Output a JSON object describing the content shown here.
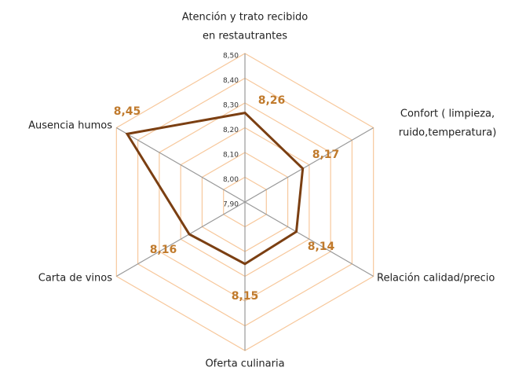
{
  "chart_data": {
    "type": "radar",
    "categories": [
      [
        "Atención y trato recibido",
        "en restautrantes"
      ],
      [
        "Confort ( limpieza,",
        "ruido,temperatura)"
      ],
      [
        "Relación calidad/precio"
      ],
      [
        "Oferta culinaria"
      ],
      [
        "Carta de vinos"
      ],
      [
        "Ausencia humos"
      ]
    ],
    "values": [
      8.26,
      8.17,
      8.14,
      8.15,
      8.16,
      8.45
    ],
    "value_labels": [
      "8,26",
      "8,17",
      "8,14",
      "8,15",
      "8,16",
      "8,45"
    ],
    "color": "#7b3f12",
    "grid_color": "#f7c89c",
    "rlim": [
      7.9,
      8.5
    ],
    "rticks": [
      {
        "value": 7.9,
        "label": "7,90"
      },
      {
        "value": 8.0,
        "label": "8,00"
      },
      {
        "value": 8.1,
        "label": "8,10"
      },
      {
        "value": 8.2,
        "label": "8,20"
      },
      {
        "value": 8.3,
        "label": "8,30"
      },
      {
        "value": 8.4,
        "label": "8,40"
      },
      {
        "value": 8.5,
        "label": "8,50"
      }
    ]
  }
}
